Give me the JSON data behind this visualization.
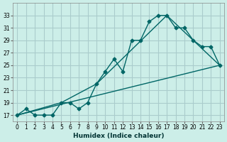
{
  "title": "",
  "xlabel": "Humidex (Indice chaleur)",
  "ylabel": "",
  "bg_color": "#cceee8",
  "grid_color": "#aacccc",
  "line_color": "#006666",
  "ylim": [
    16,
    35
  ],
  "xlim": [
    -0.5,
    23.5
  ],
  "yticks": [
    17,
    19,
    21,
    23,
    25,
    27,
    29,
    31,
    33
  ],
  "xticks": [
    0,
    1,
    2,
    3,
    4,
    5,
    6,
    7,
    8,
    9,
    10,
    11,
    12,
    13,
    14,
    15,
    16,
    17,
    18,
    19,
    20,
    21,
    22,
    23
  ],
  "line1_x": [
    0,
    1,
    2,
    3,
    4,
    5,
    6,
    7,
    8,
    9,
    10,
    11,
    12,
    13,
    14,
    15,
    16,
    17,
    18,
    19,
    20,
    21,
    22,
    23
  ],
  "line1_y": [
    17,
    18,
    17,
    17,
    17,
    19,
    19,
    18,
    19,
    22,
    24,
    26,
    24,
    29,
    29,
    32,
    33,
    33,
    31,
    31,
    29,
    28,
    28,
    25
  ],
  "line2_x": [
    0,
    23
  ],
  "line2_y": [
    17,
    25
  ],
  "line3_x": [
    0,
    5,
    9,
    17,
    23
  ],
  "line3_y": [
    17,
    19,
    22,
    33,
    25
  ]
}
